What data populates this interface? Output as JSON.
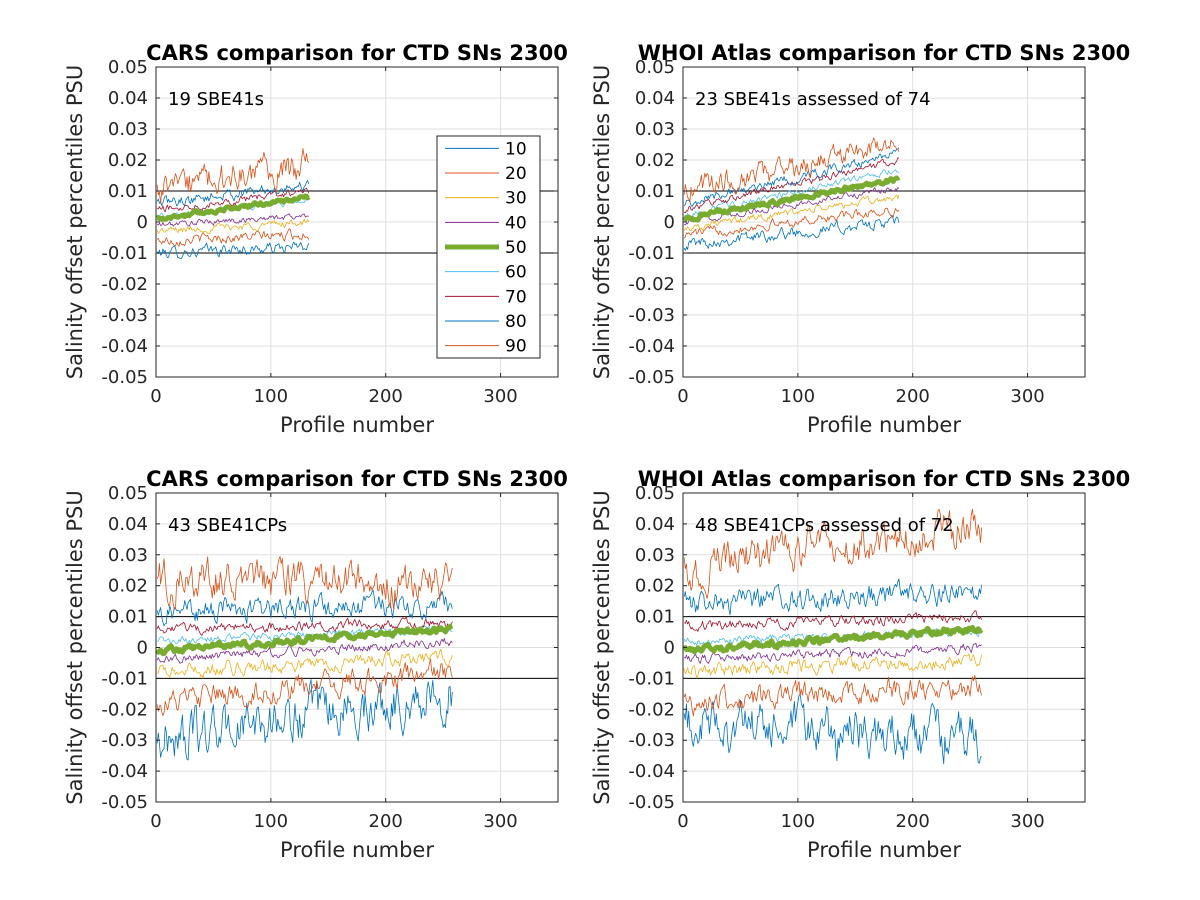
{
  "chart_data": [
    {
      "type": "line",
      "title": "CARS comparison for CTD SNs 2300",
      "xlabel": "Profile number",
      "ylabel": "Salinity offset percentiles PSU",
      "xlim": [
        0,
        350
      ],
      "ylim": [
        -0.05,
        0.05
      ],
      "xticks": [
        0,
        100,
        200,
        300
      ],
      "yticks": [
        -0.05,
        -0.04,
        -0.03,
        -0.02,
        -0.01,
        0,
        0.01,
        0.02,
        0.03,
        0.04,
        0.05
      ],
      "grid": true,
      "reference_lines": [
        0.01,
        -0.01
      ],
      "annotation": "19 SBE41s",
      "n_profiles": 133,
      "legend": true,
      "legend_position": "inside-right",
      "series": [
        {
          "name": "10",
          "start": -0.01,
          "end": -0.008,
          "noise": 0.0015,
          "color": "#0072BD"
        },
        {
          "name": "20",
          "start": -0.006,
          "end": -0.004,
          "noise": 0.0013,
          "color": "#D95319"
        },
        {
          "name": "30",
          "start": -0.003,
          "end": 0.0,
          "noise": 0.001,
          "color": "#EDB120"
        },
        {
          "name": "40",
          "start": -0.001,
          "end": 0.002,
          "noise": 0.0008,
          "color": "#7E2F8E"
        },
        {
          "name": "50",
          "start": 0.001,
          "end": 0.008,
          "noise": 0.0005,
          "color": "#77AC30"
        },
        {
          "name": "60",
          "start": 0.002,
          "end": 0.007,
          "noise": 0.0007,
          "color": "#4DBEEE"
        },
        {
          "name": "70",
          "start": 0.004,
          "end": 0.01,
          "noise": 0.001,
          "color": "#A2142F"
        },
        {
          "name": "80",
          "start": 0.006,
          "end": 0.012,
          "noise": 0.0014,
          "color": "#0072BD"
        },
        {
          "name": "90",
          "start": 0.01,
          "end": 0.018,
          "noise": 0.004,
          "color": "#D95319"
        }
      ]
    },
    {
      "type": "line",
      "title": "WHOI Atlas comparison for CTD SNs 2300",
      "xlabel": "Profile number",
      "ylabel": "Salinity offset percentiles PSU",
      "xlim": [
        0,
        350
      ],
      "ylim": [
        -0.05,
        0.05
      ],
      "xticks": [
        0,
        100,
        200,
        300
      ],
      "yticks": [
        -0.05,
        -0.04,
        -0.03,
        -0.02,
        -0.01,
        0,
        0.01,
        0.02,
        0.03,
        0.04,
        0.05
      ],
      "grid": true,
      "reference_lines": [
        0.01,
        -0.01
      ],
      "annotation": "23 SBE41s assessed of 74",
      "n_profiles": 188,
      "legend": false,
      "series": [
        {
          "name": "10",
          "start": -0.007,
          "end": 0.0,
          "noise": 0.0015,
          "color": "#0072BD"
        },
        {
          "name": "20",
          "start": -0.004,
          "end": 0.004,
          "noise": 0.0012,
          "color": "#D95319"
        },
        {
          "name": "30",
          "start": -0.002,
          "end": 0.008,
          "noise": 0.001,
          "color": "#EDB120"
        },
        {
          "name": "40",
          "start": 0.0,
          "end": 0.011,
          "noise": 0.0008,
          "color": "#7E2F8E"
        },
        {
          "name": "50",
          "start": 0.001,
          "end": 0.014,
          "noise": 0.0006,
          "color": "#77AC30"
        },
        {
          "name": "60",
          "start": 0.002,
          "end": 0.017,
          "noise": 0.0008,
          "color": "#4DBEEE"
        },
        {
          "name": "70",
          "start": 0.004,
          "end": 0.02,
          "noise": 0.001,
          "color": "#A2142F"
        },
        {
          "name": "80",
          "start": 0.006,
          "end": 0.022,
          "noise": 0.0012,
          "color": "#0072BD"
        },
        {
          "name": "90",
          "start": 0.011,
          "end": 0.024,
          "noise": 0.003,
          "color": "#D95319"
        }
      ]
    },
    {
      "type": "line",
      "title": "CARS comparison for CTD SNs 2300",
      "xlabel": "Profile number",
      "ylabel": "Salinity offset percentiles PSU",
      "xlim": [
        0,
        350
      ],
      "ylim": [
        -0.05,
        0.05
      ],
      "xticks": [
        0,
        100,
        200,
        300
      ],
      "yticks": [
        -0.05,
        -0.04,
        -0.03,
        -0.02,
        -0.01,
        0,
        0.01,
        0.02,
        0.03,
        0.04,
        0.05
      ],
      "grid": true,
      "reference_lines": [
        0.01,
        -0.01
      ],
      "annotation": "43 SBE41CPs",
      "n_profiles": 258,
      "legend": false,
      "series": [
        {
          "name": "10",
          "start": -0.03,
          "end": -0.015,
          "noise": 0.006,
          "color": "#0072BD"
        },
        {
          "name": "20",
          "start": -0.018,
          "end": -0.008,
          "noise": 0.003,
          "color": "#D95319"
        },
        {
          "name": "30",
          "start": -0.008,
          "end": -0.003,
          "noise": 0.0018,
          "color": "#EDB120"
        },
        {
          "name": "40",
          "start": -0.004,
          "end": 0.002,
          "noise": 0.0012,
          "color": "#7E2F8E"
        },
        {
          "name": "50",
          "start": -0.001,
          "end": 0.006,
          "noise": 0.0008,
          "color": "#77AC30"
        },
        {
          "name": "60",
          "start": 0.002,
          "end": 0.006,
          "noise": 0.001,
          "color": "#4DBEEE"
        },
        {
          "name": "70",
          "start": 0.006,
          "end": 0.008,
          "noise": 0.0013,
          "color": "#A2142F"
        },
        {
          "name": "80",
          "start": 0.012,
          "end": 0.013,
          "noise": 0.003,
          "color": "#0072BD"
        },
        {
          "name": "90",
          "start": 0.022,
          "end": 0.02,
          "noise": 0.005,
          "color": "#D95319"
        }
      ]
    },
    {
      "type": "line",
      "title": "WHOI Atlas comparison for CTD SNs 2300",
      "xlabel": "Profile number",
      "ylabel": "Salinity offset percentiles PSU",
      "xlim": [
        0,
        350
      ],
      "ylim": [
        -0.05,
        0.05
      ],
      "xticks": [
        0,
        100,
        200,
        300
      ],
      "yticks": [
        -0.05,
        -0.04,
        -0.03,
        -0.02,
        -0.01,
        0,
        0.01,
        0.02,
        0.03,
        0.04,
        0.05
      ],
      "grid": true,
      "reference_lines": [
        0.01,
        -0.01
      ],
      "annotation": "48 SBE41CPs assessed of 72",
      "n_profiles": 260,
      "legend": false,
      "series": [
        {
          "name": "10",
          "start": -0.025,
          "end": -0.03,
          "noise": 0.006,
          "color": "#0072BD"
        },
        {
          "name": "20",
          "start": -0.018,
          "end": -0.012,
          "noise": 0.003,
          "color": "#D95319"
        },
        {
          "name": "30",
          "start": -0.008,
          "end": -0.004,
          "noise": 0.0018,
          "color": "#EDB120"
        },
        {
          "name": "40",
          "start": -0.004,
          "end": 0.0,
          "noise": 0.0012,
          "color": "#7E2F8E"
        },
        {
          "name": "50",
          "start": -0.001,
          "end": 0.006,
          "noise": 0.0008,
          "color": "#77AC30"
        },
        {
          "name": "60",
          "start": 0.002,
          "end": 0.005,
          "noise": 0.001,
          "color": "#4DBEEE"
        },
        {
          "name": "70",
          "start": 0.007,
          "end": 0.01,
          "noise": 0.0013,
          "color": "#A2142F"
        },
        {
          "name": "80",
          "start": 0.014,
          "end": 0.018,
          "noise": 0.003,
          "color": "#0072BD"
        },
        {
          "name": "90",
          "start": 0.025,
          "end": 0.04,
          "noise": 0.005,
          "color": "#D95319"
        }
      ]
    }
  ]
}
